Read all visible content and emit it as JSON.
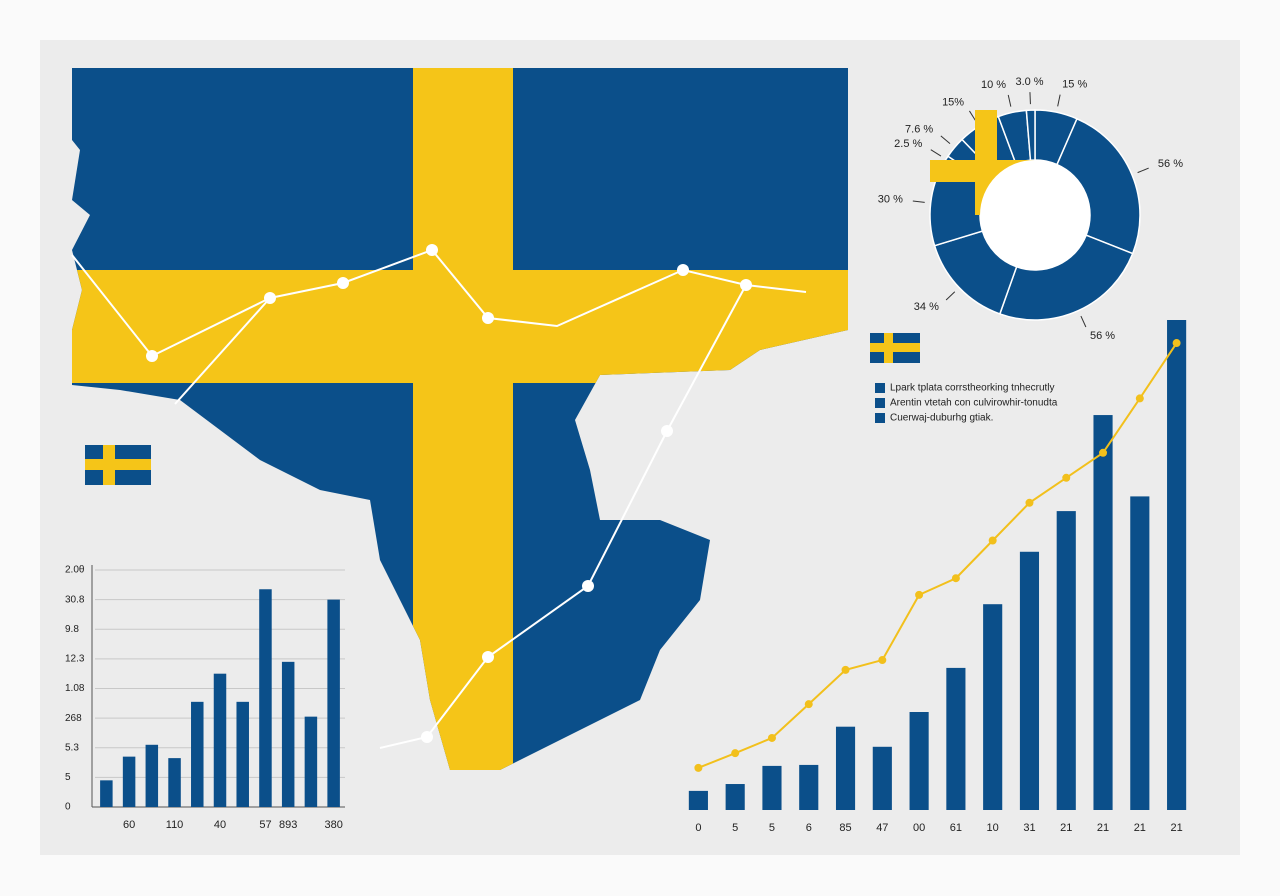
{
  "chart_data": [
    {
      "type": "bar",
      "categories": [
        null,
        "60",
        null,
        "110",
        null,
        "40",
        null,
        "57",
        "893",
        null,
        "380"
      ],
      "series": [
        {
          "color": "#0b4f8a",
          "values": [
            0.9,
            1.7,
            2.1,
            1.65,
            3.55,
            4.5,
            3.55,
            7.35,
            4.9,
            3.05,
            7.0
          ]
        }
      ],
      "ylim": [
        0,
        8
      ],
      "yticks": [
        0,
        {
          "value": 1,
          "label": "5"
        },
        {
          "value": 2,
          "label": "5.3"
        },
        {
          "value": 3,
          "label": "268"
        },
        {
          "value": 4,
          "label": "1.08"
        },
        {
          "value": 5,
          "label": "12.3"
        },
        {
          "value": 6,
          "label": "9.8"
        },
        {
          "value": 7,
          "label": "30.8"
        },
        {
          "value": 8,
          "label": "2.0θ"
        }
      ],
      "grid": true
    },
    {
      "type": "bar",
      "categories": [
        "0",
        "5",
        "5",
        "6",
        "85",
        "47",
        "00",
        "61",
        "10",
        "31",
        "21",
        "21",
        "21",
        "21"
      ],
      "series": [
        {
          "type": "bar",
          "color": "#0b4f8a",
          "values": [
            3.9,
            5.3,
            9,
            9.2,
            17,
            12.9,
            20,
            29,
            42,
            52.7,
            61,
            80.6,
            64,
            100
          ]
        },
        {
          "type": "line",
          "color": "#f2c01c",
          "values": [
            8.6,
            11.6,
            14.7,
            21.6,
            28.6,
            30.6,
            43.9,
            47.3,
            55,
            62.7,
            67.8,
            72.9,
            84,
            95.3
          ]
        }
      ],
      "ylim": [
        0,
        100
      ]
    },
    {
      "type": "pie",
      "values": [
        15,
        56,
        56,
        34,
        30,
        2.5,
        7.6,
        15,
        10,
        3.0
      ],
      "value_labels": [
        "15 %",
        "56 %",
        "56 %",
        "34 %",
        "30 %",
        "2.5 %",
        "7.6 %",
        "15%",
        "10 %",
        "3.0 %"
      ],
      "color": "#0b4f8a",
      "legend": [
        "Lpark tplata corrstheorking tnhecrutly",
        "Arentin vtetah con culvirowhir-tonudta",
        "Cuerwaj-duburhg gtiak."
      ]
    }
  ]
}
